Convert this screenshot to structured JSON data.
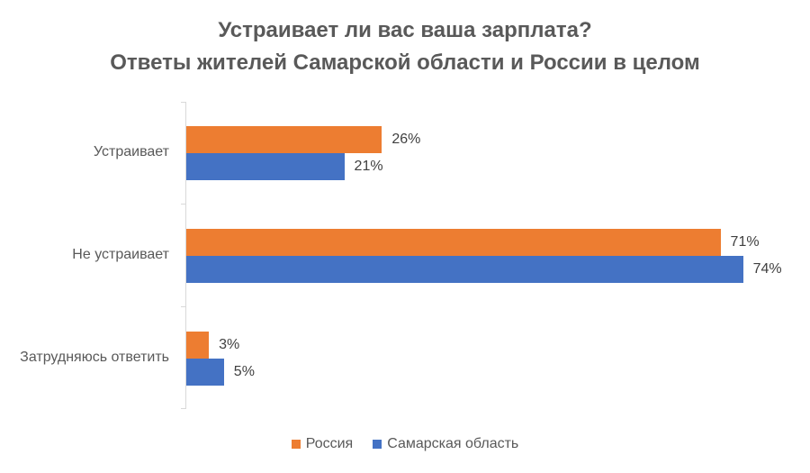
{
  "chart_data": {
    "type": "bar",
    "orientation": "horizontal",
    "title": "Устраивает ли вас ваша зарплата?",
    "subtitle": "Ответы жителей Самарской области и России в целом",
    "categories": [
      "Устраивает",
      "Не устраивает",
      "Затрудняюсь ответить"
    ],
    "series": [
      {
        "name": "Россия",
        "color": "#ED7D31",
        "values": [
          26,
          71,
          3
        ],
        "labels": [
          "26%",
          "71%",
          "3%"
        ]
      },
      {
        "name": "Самарская область",
        "color": "#4472C4",
        "values": [
          21,
          74,
          5
        ],
        "labels": [
          "21%",
          "74%",
          "5%"
        ]
      }
    ],
    "xlabel": "",
    "ylabel": "",
    "unit": "%",
    "grid": false,
    "legend_position": "bottom"
  },
  "title": {
    "line1": "Устраивает ли вас ваша зарплата?",
    "line2": "Ответы жителей Самарской области и России в целом"
  },
  "legend": [
    {
      "label": "Россия",
      "color": "#ED7D31"
    },
    {
      "label": "Самарская область",
      "color": "#4472C4"
    }
  ]
}
